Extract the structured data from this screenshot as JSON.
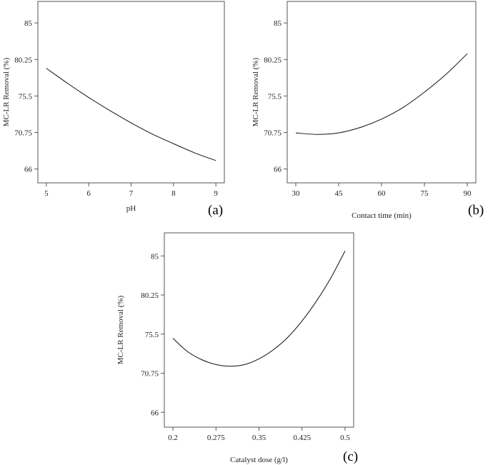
{
  "chart_data": [
    {
      "id": "a",
      "type": "line",
      "panel_label": "(a)",
      "xlabel": "pH",
      "ylabel": "MC-LR Removal (%)",
      "xlim": [
        4.8,
        9.2
      ],
      "ylim": [
        64.2,
        87.8
      ],
      "xticks": [
        5,
        6,
        7,
        8,
        9
      ],
      "xtick_labels": [
        "5",
        "6",
        "7",
        "8",
        "9"
      ],
      "yticks": [
        66,
        70.75,
        75.5,
        80.25,
        85
      ],
      "ytick_labels": [
        "66",
        "70.75",
        "75.5",
        "80.25",
        "85"
      ],
      "series": [
        {
          "x": [
            5,
            5.5,
            6,
            6.5,
            7,
            7.5,
            8,
            8.5,
            9
          ],
          "y": [
            79.1,
            77.15,
            75.3,
            73.6,
            72.0,
            70.55,
            69.3,
            68.1,
            67.1
          ]
        }
      ]
    },
    {
      "id": "b",
      "type": "line",
      "panel_label": "(b)",
      "xlabel": "Contact time (min)",
      "ylabel": "MC-LR Removal (%)",
      "xlim": [
        27.0,
        93.0
      ],
      "ylim": [
        64.2,
        87.8
      ],
      "xticks": [
        30,
        45,
        60,
        75,
        90
      ],
      "xtick_labels": [
        "30",
        "45",
        "60",
        "75",
        "90"
      ],
      "yticks": [
        66,
        70.75,
        75.5,
        80.25,
        85
      ],
      "ytick_labels": [
        "66",
        "70.75",
        "75.5",
        "80.25",
        "85"
      ],
      "series": [
        {
          "x": [
            30,
            37.5,
            45,
            52.5,
            60,
            67.5,
            75,
            82.5,
            90
          ],
          "y": [
            70.7,
            70.5,
            70.7,
            71.4,
            72.5,
            74.0,
            76.0,
            78.3,
            81.0
          ]
        }
      ]
    },
    {
      "id": "c",
      "type": "line",
      "panel_label": "(c)",
      "xlabel": "Catalyst dose (g/l)",
      "ylabel": "MC-LR Removal (%)",
      "xlim": [
        0.185,
        0.515
      ],
      "ylim": [
        64.2,
        87.8
      ],
      "xticks": [
        0.2,
        0.275,
        0.35,
        0.425,
        0.5
      ],
      "xtick_labels": [
        "0.2",
        "0.275",
        "0.35",
        "0.425",
        "0.5"
      ],
      "yticks": [
        66,
        70.75,
        75.5,
        80.25,
        85
      ],
      "ytick_labels": [
        "66",
        "70.75",
        "75.5",
        "80.25",
        "85"
      ],
      "series": [
        {
          "x": [
            0.2,
            0.225,
            0.25,
            0.275,
            0.3,
            0.325,
            0.35,
            0.375,
            0.4,
            0.425,
            0.45,
            0.475,
            0.5
          ],
          "y": [
            75.0,
            73.4,
            72.4,
            71.8,
            71.6,
            71.8,
            72.5,
            73.6,
            75.1,
            77.1,
            79.5,
            82.3,
            85.6
          ]
        }
      ]
    }
  ]
}
